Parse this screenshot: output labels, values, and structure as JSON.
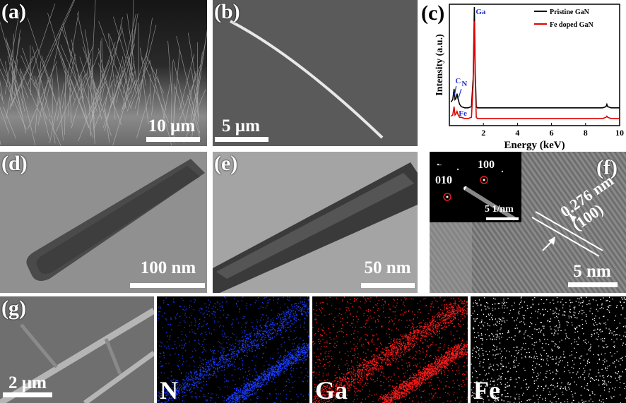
{
  "panels": {
    "a": {
      "label": "(a)",
      "scale": "10 µm"
    },
    "b": {
      "label": "(b)",
      "scale": "5 µm"
    },
    "c": {
      "label": "(c)"
    },
    "d": {
      "label": "(d)",
      "scale": "100 nm"
    },
    "e": {
      "label": "(e)",
      "scale": "50 nm"
    },
    "f": {
      "label": "(f)",
      "scale": "5 nm",
      "inset_scale": "5 1/nm",
      "spot1": "100",
      "spot2": "010",
      "spot2_bar": "‾",
      "d_spacing": "0.276 nm",
      "plane": "(100)"
    },
    "g": {
      "label": "(g)",
      "scale": "2 µm"
    },
    "maps": {
      "n": "N",
      "ga": "Ga",
      "fe": "Fe"
    }
  },
  "colors": {
    "n_map": "#1a3cff",
    "ga_map": "#ff1a1a",
    "fe_map": "#ffffff",
    "pristine": "#000000",
    "doped": "#e00000",
    "annot": "#2233cc"
  },
  "chart_data": {
    "type": "line",
    "xlabel": "Energy (keV)",
    "ylabel": "Intensity (a.u.)",
    "xlim": [
      0,
      10
    ],
    "x_ticks": [
      "2",
      "4",
      "6",
      "8",
      "10"
    ],
    "legend_position": "top-right",
    "series": [
      {
        "name": "Pristine GaN",
        "color": "#000000",
        "x": [
          0.1,
          0.2,
          0.28,
          0.33,
          0.39,
          0.45,
          0.52,
          0.6,
          0.7,
          0.9,
          1.1,
          1.3,
          1.4,
          1.47,
          1.52,
          1.58,
          1.65,
          1.8,
          2.0,
          2.5,
          3,
          4,
          5,
          6,
          7,
          8,
          9,
          9.2,
          9.25,
          9.3,
          9.5,
          10
        ],
        "y": [
          0.2,
          0.22,
          0.31,
          0.22,
          0.23,
          0.27,
          0.22,
          0.18,
          0.16,
          0.15,
          0.15,
          0.16,
          0.4,
          1.0,
          0.45,
          0.16,
          0.15,
          0.15,
          0.15,
          0.15,
          0.15,
          0.15,
          0.15,
          0.15,
          0.15,
          0.15,
          0.15,
          0.16,
          0.18,
          0.16,
          0.15,
          0.15
        ]
      },
      {
        "name": "Fe doped GaN",
        "color": "#e00000",
        "x": [
          0.1,
          0.2,
          0.28,
          0.33,
          0.39,
          0.45,
          0.52,
          0.6,
          0.7,
          0.9,
          1.1,
          1.3,
          1.4,
          1.47,
          1.52,
          1.58,
          1.65,
          1.8,
          2.0,
          2.5,
          3,
          4,
          5,
          6,
          7,
          8,
          9,
          9.2,
          9.25,
          9.3,
          9.5,
          10
        ],
        "y": [
          0.08,
          0.09,
          0.16,
          0.09,
          0.1,
          0.12,
          0.09,
          0.07,
          0.07,
          0.06,
          0.06,
          0.07,
          0.35,
          0.88,
          0.38,
          0.07,
          0.06,
          0.06,
          0.06,
          0.06,
          0.06,
          0.06,
          0.06,
          0.06,
          0.06,
          0.06,
          0.06,
          0.07,
          0.08,
          0.07,
          0.06,
          0.06
        ]
      }
    ],
    "annotations": [
      "Ga",
      "C",
      "N",
      "Fe"
    ]
  }
}
